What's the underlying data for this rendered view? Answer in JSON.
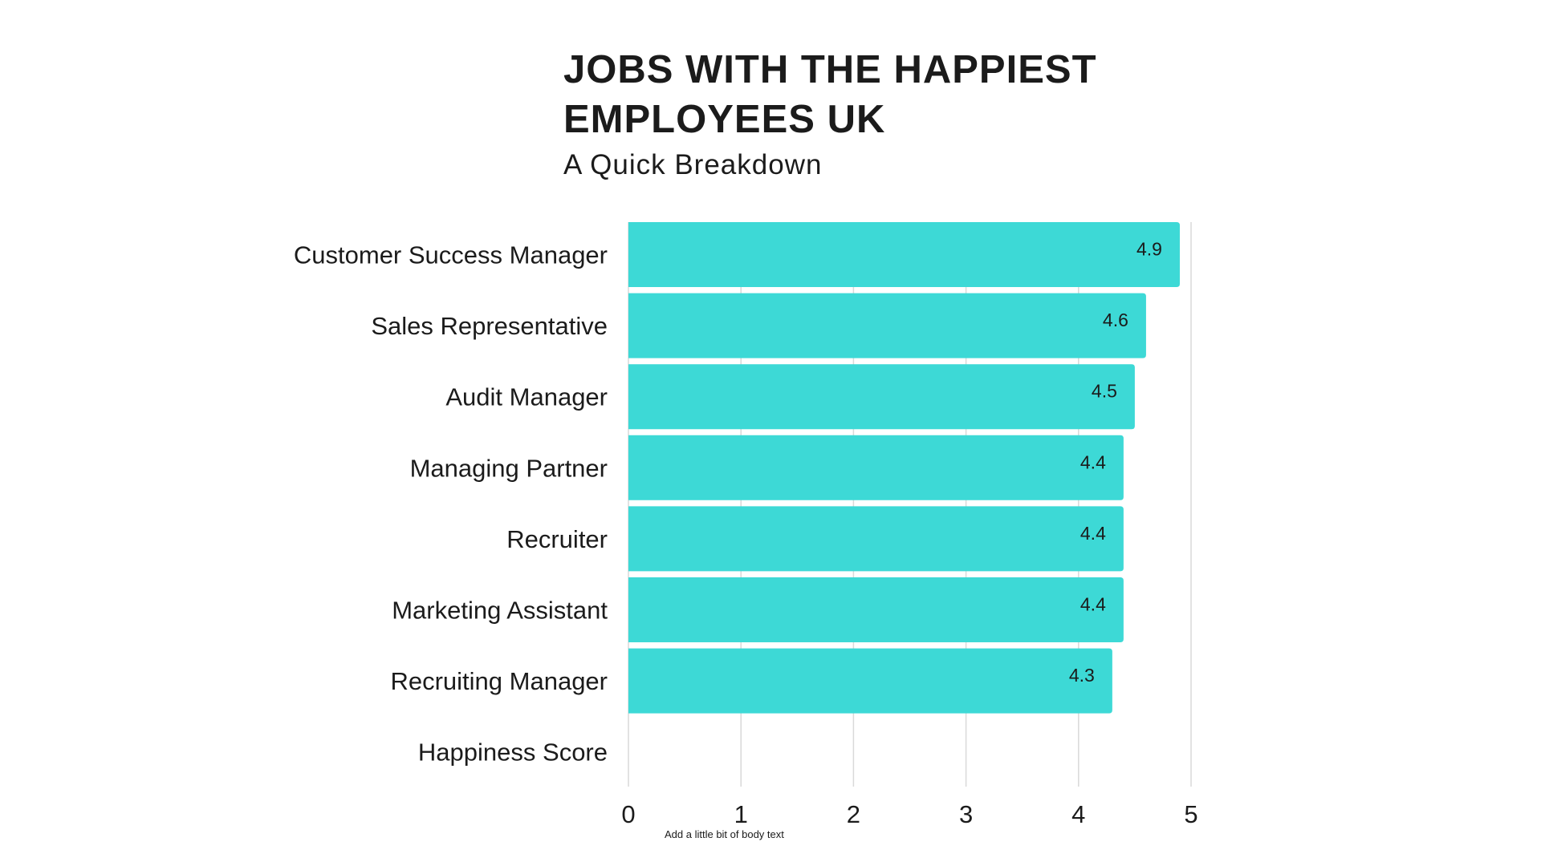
{
  "chart_data": {
    "type": "bar",
    "orientation": "horizontal",
    "title": "JOBS WITH THE HAPPIEST EMPLOYEES UK",
    "subtitle": "A Quick Breakdown",
    "categories": [
      "Customer Success Manager",
      "Sales Representative",
      "Audit Manager",
      "Managing Partner",
      "Recruiter",
      "Marketing Assistant",
      "Recruiting Manager"
    ],
    "series": [
      {
        "name": "Happiness Score",
        "values": [
          4.9,
          4.6,
          4.5,
          4.4,
          4.4,
          4.4,
          4.3
        ]
      }
    ],
    "legend_label": "Happiness Score",
    "xlim": [
      0,
      5
    ],
    "xticks": [
      "0",
      "1",
      "2",
      "3",
      "4",
      "5"
    ],
    "grid": true,
    "bar_color": "#3dd9d6",
    "footnote": "Add a little bit of body text"
  }
}
